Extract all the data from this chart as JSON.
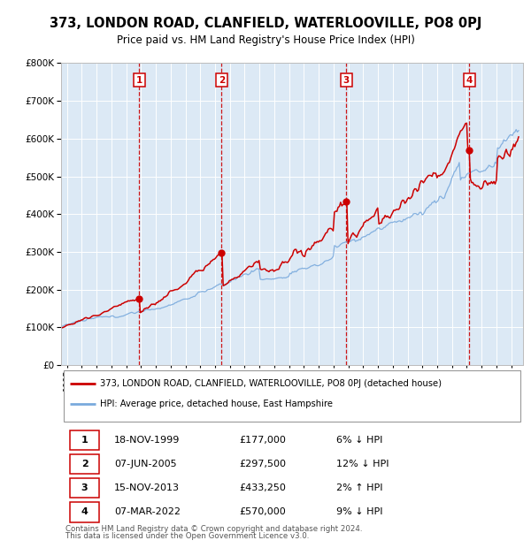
{
  "title": "373, LONDON ROAD, CLANFIELD, WATERLOOVILLE, PO8 0PJ",
  "subtitle": "Price paid vs. HM Land Registry's House Price Index (HPI)",
  "red_line_label": "373, LONDON ROAD, CLANFIELD, WATERLOOVILLE, PO8 0PJ (detached house)",
  "blue_line_label": "HPI: Average price, detached house, East Hampshire",
  "transactions": [
    {
      "num": 1,
      "date": "18-NOV-1999",
      "price": 177000,
      "pct": "6%",
      "dir": "↓",
      "year_x": 1999.88
    },
    {
      "num": 2,
      "date": "07-JUN-2005",
      "price": 297500,
      "pct": "12%",
      "dir": "↓",
      "year_x": 2005.44
    },
    {
      "num": 3,
      "date": "15-NOV-2013",
      "price": 433250,
      "pct": "2%",
      "dir": "↑",
      "year_x": 2013.87
    },
    {
      "num": 4,
      "date": "07-MAR-2022",
      "price": 570000,
      "pct": "9%",
      "dir": "↓",
      "year_x": 2022.18
    }
  ],
  "footnote1": "Contains HM Land Registry data © Crown copyright and database right 2024.",
  "footnote2": "This data is licensed under the Open Government Licence v3.0.",
  "ylim": [
    0,
    800000
  ],
  "xlim_start": 1994.6,
  "xlim_end": 2025.8,
  "bg_color": "#dce9f5",
  "red_color": "#cc0000",
  "blue_color": "#7aaadd",
  "vline_color": "#cc0000",
  "grid_color": "#ffffff",
  "table_rows": [
    [
      "1",
      "18-NOV-1999",
      "£177,000",
      "6% ↓ HPI"
    ],
    [
      "2",
      "07-JUN-2005",
      "£297,500",
      "12% ↓ HPI"
    ],
    [
      "3",
      "15-NOV-2013",
      "£433,250",
      "2% ↑ HPI"
    ],
    [
      "4",
      "07-MAR-2022",
      "£570,000",
      "9% ↓ HPI"
    ]
  ]
}
